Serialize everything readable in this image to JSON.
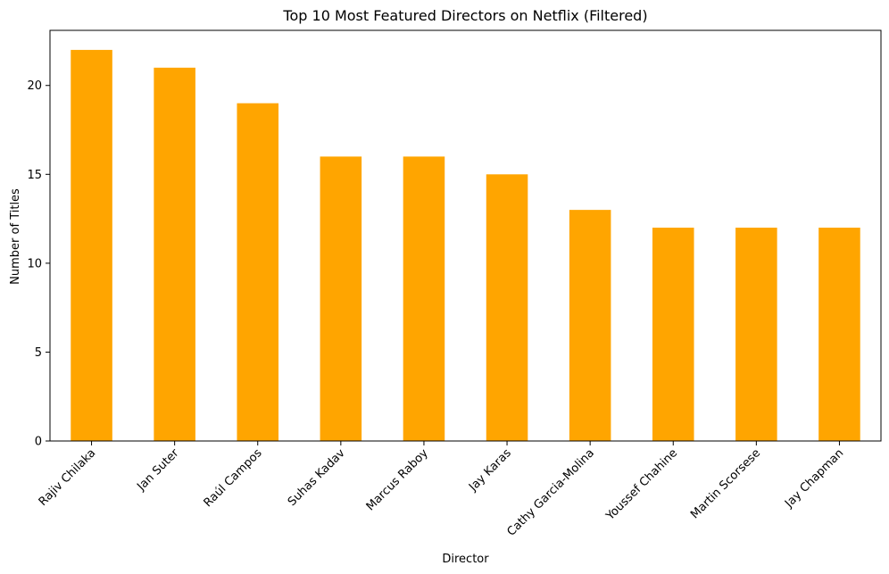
{
  "chart_data": {
    "type": "bar",
    "title": "Top 10 Most Featured Directors on Netflix (Filtered)",
    "xlabel": "Director",
    "ylabel": "Number of Titles",
    "categories": [
      "Rajiv Chilaka",
      "Jan Suter",
      "Raúl Campos",
      "Suhas Kadav",
      "Marcus Raboy",
      "Jay Karas",
      "Cathy Garcia-Molina",
      "Youssef Chahine",
      "Martin Scorsese",
      "Jay Chapman"
    ],
    "values": [
      22,
      21,
      19,
      16,
      16,
      15,
      13,
      12,
      12,
      12
    ],
    "ylim": [
      0,
      23.1
    ],
    "yticks": [
      0,
      5,
      10,
      15,
      20
    ],
    "bar_color": "#ffa500",
    "grid": false,
    "legend": "none"
  }
}
